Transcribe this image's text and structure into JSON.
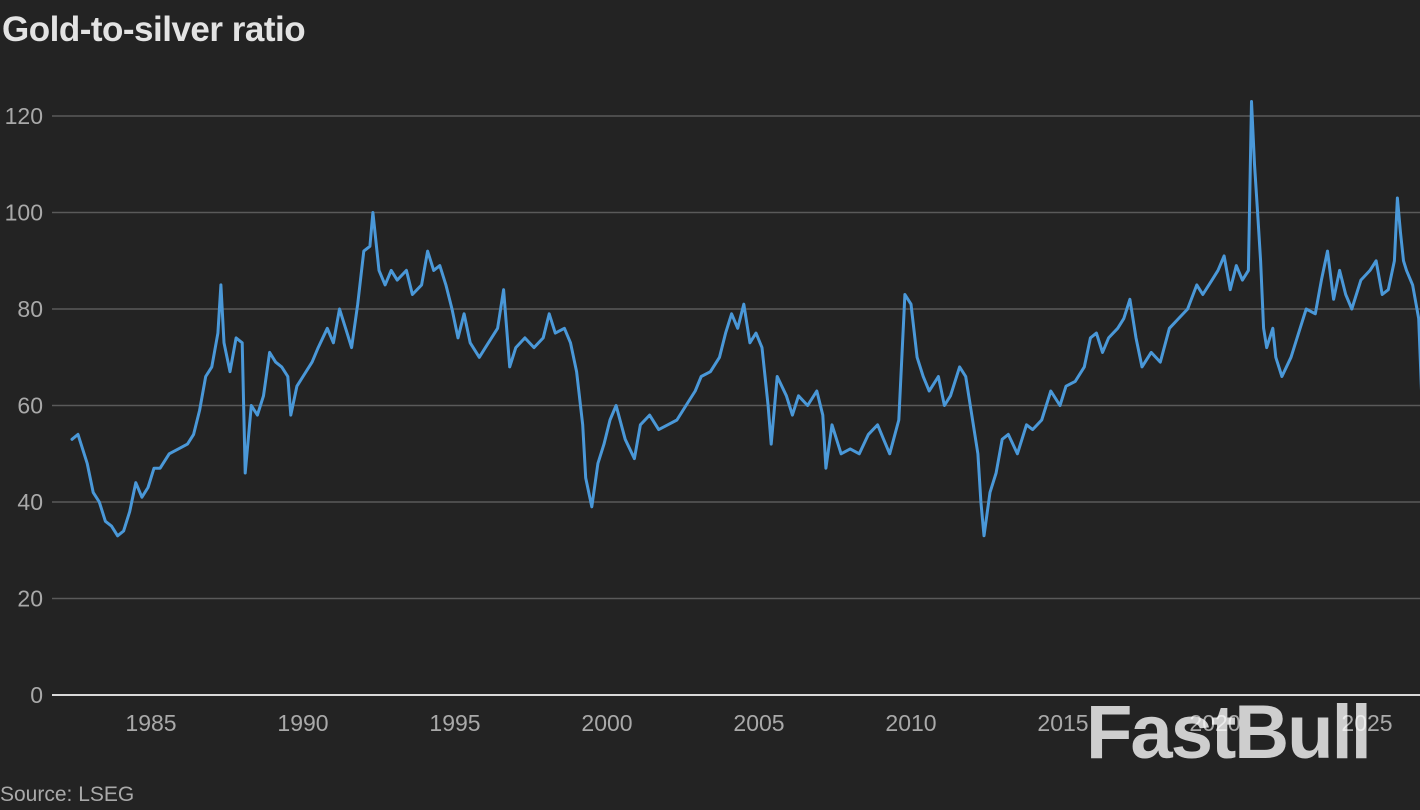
{
  "chart_data": {
    "type": "line",
    "title": "Gold-to-silver ratio",
    "source": "Source: LSEG",
    "watermark": "FastBull",
    "line_color": "#4a98d8",
    "ylim": [
      0,
      125
    ],
    "xlim": [
      1982.3,
      2026.3
    ],
    "y_ticks": [
      0,
      20,
      40,
      60,
      80,
      100,
      120
    ],
    "x_ticks": [
      1985,
      1990,
      1995,
      2000,
      2005,
      2010,
      2015,
      2020,
      2025
    ],
    "grid": "horizontal",
    "series": [
      {
        "values": [
          [
            1982.4,
            53
          ],
          [
            1982.6,
            54
          ],
          [
            1982.9,
            48
          ],
          [
            1983.1,
            42
          ],
          [
            1983.3,
            40
          ],
          [
            1983.5,
            36
          ],
          [
            1983.7,
            35
          ],
          [
            1983.9,
            33
          ],
          [
            1984.1,
            34
          ],
          [
            1984.3,
            38
          ],
          [
            1984.5,
            44
          ],
          [
            1984.7,
            41
          ],
          [
            1984.9,
            43
          ],
          [
            1985.1,
            47
          ],
          [
            1985.3,
            47
          ],
          [
            1985.6,
            50
          ],
          [
            1985.9,
            51
          ],
          [
            1986.2,
            52
          ],
          [
            1986.4,
            54
          ],
          [
            1986.6,
            59
          ],
          [
            1986.8,
            66
          ],
          [
            1987.0,
            68
          ],
          [
            1987.2,
            75
          ],
          [
            1987.3,
            85
          ],
          [
            1987.4,
            73
          ],
          [
            1987.6,
            67
          ],
          [
            1987.8,
            74
          ],
          [
            1988.0,
            73
          ],
          [
            1988.1,
            46
          ],
          [
            1988.3,
            60
          ],
          [
            1988.5,
            58
          ],
          [
            1988.7,
            62
          ],
          [
            1988.9,
            71
          ],
          [
            1989.1,
            69
          ],
          [
            1989.3,
            68
          ],
          [
            1989.5,
            66
          ],
          [
            1989.6,
            58
          ],
          [
            1989.8,
            64
          ],
          [
            1990.0,
            66
          ],
          [
            1990.3,
            69
          ],
          [
            1990.5,
            72
          ],
          [
            1990.8,
            76
          ],
          [
            1991.0,
            73
          ],
          [
            1991.2,
            80
          ],
          [
            1991.4,
            76
          ],
          [
            1991.6,
            72
          ],
          [
            1991.8,
            81
          ],
          [
            1992.0,
            92
          ],
          [
            1992.2,
            93
          ],
          [
            1992.3,
            100
          ],
          [
            1992.5,
            88
          ],
          [
            1992.7,
            85
          ],
          [
            1992.9,
            88
          ],
          [
            1993.1,
            86
          ],
          [
            1993.4,
            88
          ],
          [
            1993.6,
            83
          ],
          [
            1993.9,
            85
          ],
          [
            1994.1,
            92
          ],
          [
            1994.3,
            88
          ],
          [
            1994.5,
            89
          ],
          [
            1994.7,
            85
          ],
          [
            1994.9,
            80
          ],
          [
            1995.1,
            74
          ],
          [
            1995.3,
            79
          ],
          [
            1995.5,
            73
          ],
          [
            1995.8,
            70
          ],
          [
            1996.0,
            72
          ],
          [
            1996.2,
            74
          ],
          [
            1996.4,
            76
          ],
          [
            1996.6,
            84
          ],
          [
            1996.8,
            68
          ],
          [
            1997.0,
            72
          ],
          [
            1997.3,
            74
          ],
          [
            1997.6,
            72
          ],
          [
            1997.9,
            74
          ],
          [
            1998.1,
            79
          ],
          [
            1998.3,
            75
          ],
          [
            1998.6,
            76
          ],
          [
            1998.8,
            73
          ],
          [
            1999.0,
            67
          ],
          [
            1999.2,
            56
          ],
          [
            1999.3,
            45
          ],
          [
            1999.5,
            39
          ],
          [
            1999.7,
            48
          ],
          [
            1999.9,
            52
          ],
          [
            2000.1,
            57
          ],
          [
            2000.3,
            60
          ],
          [
            2000.6,
            53
          ],
          [
            2000.9,
            49
          ],
          [
            2001.1,
            56
          ],
          [
            2001.4,
            58
          ],
          [
            2001.7,
            55
          ],
          [
            2002.0,
            56
          ],
          [
            2002.3,
            57
          ],
          [
            2002.6,
            60
          ],
          [
            2002.9,
            63
          ],
          [
            2003.1,
            66
          ],
          [
            2003.4,
            67
          ],
          [
            2003.7,
            70
          ],
          [
            2003.9,
            75
          ],
          [
            2004.1,
            79
          ],
          [
            2004.3,
            76
          ],
          [
            2004.5,
            81
          ],
          [
            2004.7,
            73
          ],
          [
            2004.9,
            75
          ],
          [
            2005.1,
            72
          ],
          [
            2005.3,
            60
          ],
          [
            2005.4,
            52
          ],
          [
            2005.6,
            66
          ],
          [
            2005.9,
            62
          ],
          [
            2006.1,
            58
          ],
          [
            2006.3,
            62
          ],
          [
            2006.6,
            60
          ],
          [
            2006.9,
            63
          ],
          [
            2007.1,
            58
          ],
          [
            2007.2,
            47
          ],
          [
            2007.4,
            56
          ],
          [
            2007.7,
            50
          ],
          [
            2008.0,
            51
          ],
          [
            2008.3,
            50
          ],
          [
            2008.6,
            54
          ],
          [
            2008.9,
            56
          ],
          [
            2009.1,
            53
          ],
          [
            2009.3,
            50
          ],
          [
            2009.6,
            57
          ],
          [
            2009.8,
            83
          ],
          [
            2010.0,
            81
          ],
          [
            2010.2,
            70
          ],
          [
            2010.4,
            66
          ],
          [
            2010.6,
            63
          ],
          [
            2010.9,
            66
          ],
          [
            2011.1,
            60
          ],
          [
            2011.3,
            62
          ],
          [
            2011.6,
            68
          ],
          [
            2011.8,
            66
          ],
          [
            2012.0,
            58
          ],
          [
            2012.2,
            50
          ],
          [
            2012.3,
            40
          ],
          [
            2012.4,
            33
          ],
          [
            2012.6,
            42
          ],
          [
            2012.8,
            46
          ],
          [
            2013.0,
            53
          ],
          [
            2013.2,
            54
          ],
          [
            2013.5,
            50
          ],
          [
            2013.8,
            56
          ],
          [
            2014.0,
            55
          ],
          [
            2014.3,
            57
          ],
          [
            2014.6,
            63
          ],
          [
            2014.9,
            60
          ],
          [
            2015.1,
            64
          ],
          [
            2015.4,
            65
          ],
          [
            2015.7,
            68
          ],
          [
            2015.9,
            74
          ],
          [
            2016.1,
            75
          ],
          [
            2016.3,
            71
          ],
          [
            2016.5,
            74
          ],
          [
            2016.8,
            76
          ],
          [
            2017.0,
            78
          ],
          [
            2017.2,
            82
          ],
          [
            2017.4,
            74
          ],
          [
            2017.6,
            68
          ],
          [
            2017.9,
            71
          ],
          [
            2018.2,
            69
          ],
          [
            2018.5,
            76
          ],
          [
            2018.8,
            78
          ],
          [
            2019.1,
            80
          ],
          [
            2019.4,
            85
          ],
          [
            2019.6,
            83
          ],
          [
            2019.9,
            86
          ],
          [
            2020.1,
            88
          ],
          [
            2020.3,
            91
          ],
          [
            2020.5,
            84
          ],
          [
            2020.7,
            89
          ],
          [
            2020.9,
            86
          ],
          [
            2021.1,
            88
          ],
          [
            2021.2,
            123
          ],
          [
            2021.3,
            110
          ],
          [
            2021.4,
            100
          ],
          [
            2021.5,
            90
          ],
          [
            2021.6,
            76
          ],
          [
            2021.7,
            72
          ],
          [
            2021.9,
            76
          ],
          [
            2022.0,
            70
          ],
          [
            2022.2,
            66
          ],
          [
            2022.5,
            70
          ],
          [
            2022.8,
            76
          ],
          [
            2023.0,
            80
          ],
          [
            2023.3,
            79
          ],
          [
            2023.5,
            86
          ],
          [
            2023.7,
            92
          ],
          [
            2023.9,
            82
          ],
          [
            2024.1,
            88
          ],
          [
            2024.3,
            83
          ],
          [
            2024.5,
            80
          ],
          [
            2024.8,
            86
          ],
          [
            2025.1,
            88
          ],
          [
            2025.3,
            90
          ],
          [
            2025.5,
            83
          ],
          [
            2025.7,
            84
          ],
          [
            2025.9,
            90
          ],
          [
            2026.0,
            103
          ],
          [
            2026.1,
            96
          ],
          [
            2026.2,
            90
          ],
          [
            2026.3,
            88
          ],
          [
            2026.5,
            85
          ],
          [
            2026.7,
            78
          ],
          [
            2026.8,
            62
          ],
          [
            2026.95,
            50
          ]
        ]
      }
    ]
  }
}
